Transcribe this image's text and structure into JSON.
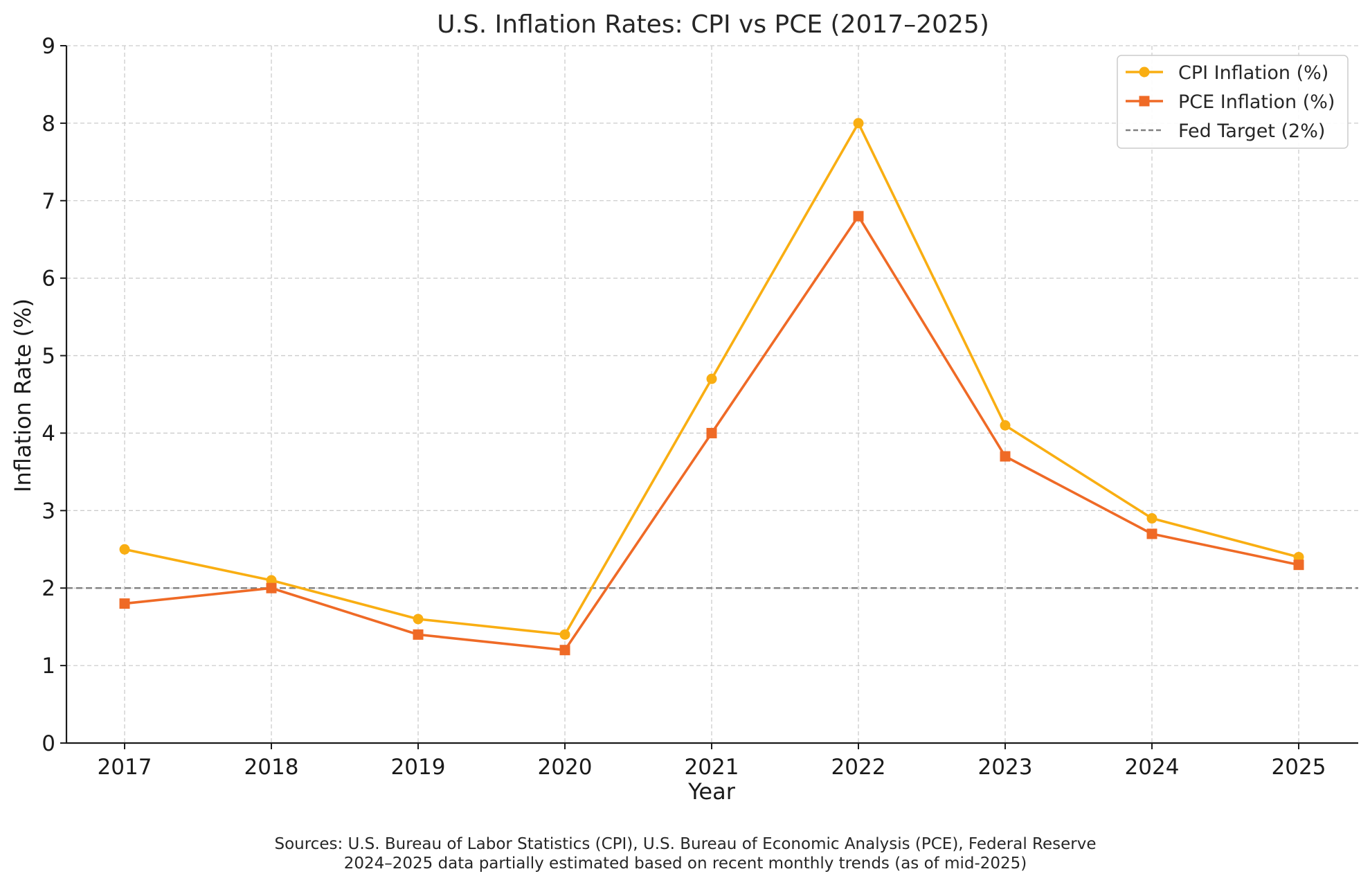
{
  "chart_data": {
    "type": "line",
    "title": "U.S. Inflation Rates: CPI vs PCE (2017–2025)",
    "xlabel": "Year",
    "ylabel": "Inflation Rate (%)",
    "categories": [
      "2017",
      "2018",
      "2019",
      "2020",
      "2021",
      "2022",
      "2023",
      "2024",
      "2025"
    ],
    "ylim": [
      0,
      9
    ],
    "yticks": [
      "0",
      "1",
      "2",
      "3",
      "4",
      "5",
      "6",
      "7",
      "8",
      "9"
    ],
    "grid": true,
    "legend_position": "top-right",
    "series": [
      {
        "name": "CPI Inflation (%)",
        "color": "#F9AE12",
        "marker": "circle",
        "values": [
          2.5,
          2.1,
          1.6,
          1.4,
          4.7,
          8.0,
          4.1,
          2.9,
          2.4
        ]
      },
      {
        "name": "PCE Inflation (%)",
        "color": "#EF6A26",
        "marker": "square",
        "values": [
          1.8,
          2.0,
          1.4,
          1.2,
          4.0,
          6.8,
          3.7,
          2.7,
          2.3
        ]
      }
    ],
    "reference_line": {
      "name": "Fed Target (2%)",
      "value": 2,
      "color": "#808080",
      "style": "dashed"
    },
    "footnote": [
      "Sources: U.S. Bureau of Labor Statistics (CPI), U.S. Bureau of Economic Analysis (PCE), Federal Reserve",
      "2024–2025 data partially estimated based on recent monthly trends (as of mid-2025)"
    ]
  }
}
